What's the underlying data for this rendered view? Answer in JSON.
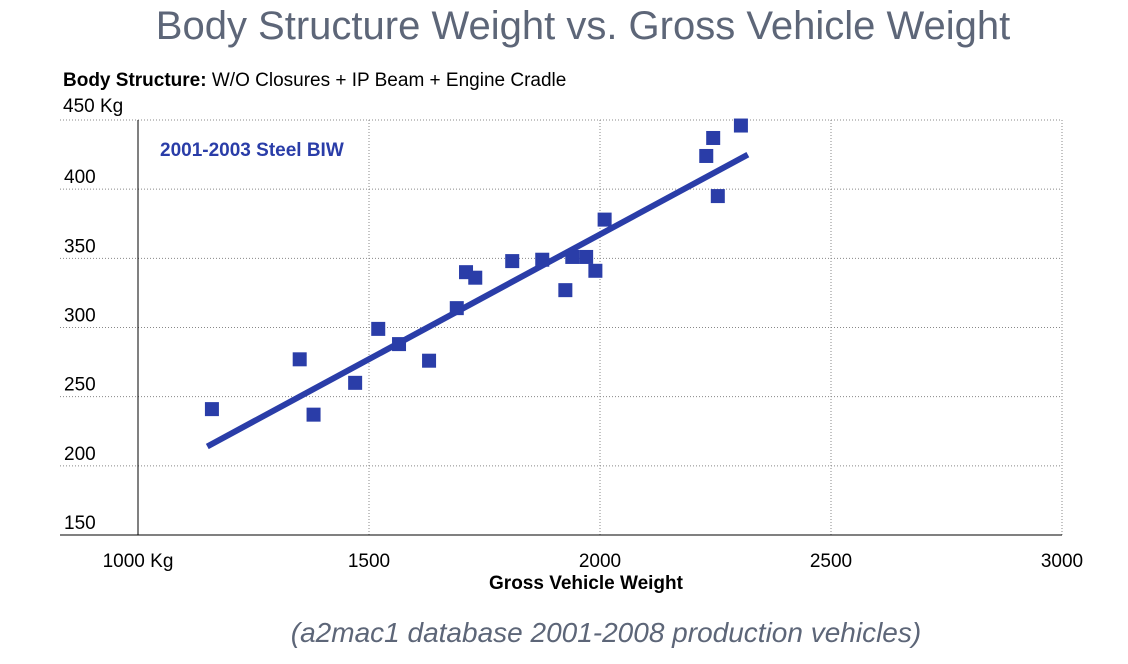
{
  "title": "Body Structure Weight vs. Gross Vehicle Weight",
  "subtitle_bold": "Body Structure:",
  "subtitle_rest": " W/O Closures + IP Beam + Engine Cradle",
  "footnote": "(a2mac1 database 2001-2008 production vehicles)",
  "colors": {
    "series": "#2a3da8",
    "grid": "#888888",
    "title": "#5d6678"
  },
  "chart_data": {
    "type": "scatter",
    "title": "Body Structure Weight vs. Gross Vehicle Weight",
    "xlabel": "Gross Vehicle Weight",
    "ylabel": "450 Kg",
    "xlim": [
      1000,
      3000
    ],
    "ylim": [
      150,
      450
    ],
    "x_ticks": [
      "1000 Kg",
      "1500",
      "2000",
      "2500",
      "3000"
    ],
    "y_ticks": [
      "150",
      "200",
      "250",
      "300",
      "350",
      "400",
      "450 Kg"
    ],
    "grid": "dotted",
    "series": [
      {
        "name": "2001-2003 Steel BIW",
        "x": [
          1160,
          1350,
          1380,
          1470,
          1520,
          1565,
          1630,
          1690,
          1710,
          1730,
          1810,
          1875,
          1925,
          1940,
          1970,
          1990,
          2010,
          2230,
          2245,
          2255,
          2305
        ],
        "y": [
          241,
          277,
          237,
          260,
          299,
          288,
          276,
          314,
          340,
          336,
          348,
          349,
          327,
          351,
          351,
          341,
          378,
          424,
          437,
          395,
          446
        ]
      }
    ],
    "trendline": {
      "x": [
        1150,
        2320
      ],
      "y": [
        214,
        425
      ]
    }
  }
}
